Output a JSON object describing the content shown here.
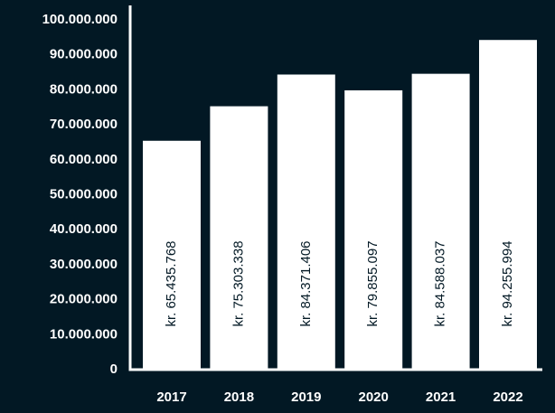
{
  "chart_data": {
    "type": "bar",
    "title": "",
    "xlabel": "",
    "ylabel": "",
    "categories": [
      "2017",
      "2018",
      "2019",
      "2020",
      "2021",
      "2022"
    ],
    "values": [
      65435768,
      75303338,
      84371406,
      79855097,
      84588037,
      94255994
    ],
    "data_labels": [
      "kr. 65.435.768",
      "kr. 75.303.338",
      "kr. 84.371.406",
      "kr. 79.855.097",
      "kr. 84.588.037",
      "kr. 94.255.994"
    ],
    "ylim": [
      0,
      100000000
    ],
    "yticks": [
      0,
      10000000,
      20000000,
      30000000,
      40000000,
      50000000,
      60000000,
      70000000,
      80000000,
      90000000,
      100000000
    ],
    "ytick_labels": [
      "0",
      "10.000.000",
      "20.000.000",
      "30.000.000",
      "40.000.000",
      "50.000.000",
      "60.000.000",
      "70.000.000",
      "80.000.000",
      "90.000.000",
      "100.000.000"
    ],
    "grid": false,
    "legend": "none",
    "data_label_orientation": "vertical",
    "colors": {
      "background": "#021824",
      "bar": "#ffffff",
      "axis": "#ffffff",
      "text": "#ffffff",
      "data_label_text": "#021824"
    }
  }
}
